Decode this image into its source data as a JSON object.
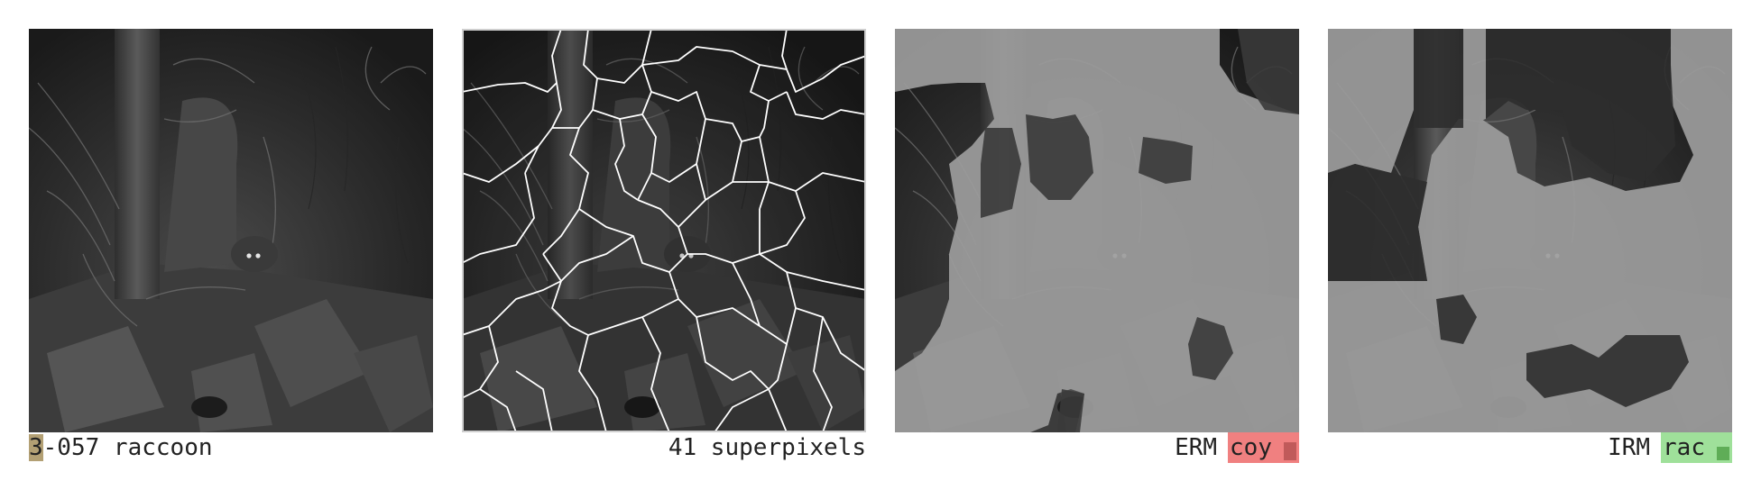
{
  "panels": [
    {
      "name": "original",
      "id_prefix": "3",
      "label": "-057 raccoon"
    },
    {
      "name": "superpixels",
      "label": "41 superpixels"
    },
    {
      "name": "erm",
      "method": "ERM",
      "prediction": "coy",
      "correct": false,
      "confidence": 0.7
    },
    {
      "name": "irm",
      "method": "IRM",
      "prediction": "rac",
      "correct": true,
      "confidence": 0.55
    }
  ],
  "colors": {
    "id_chip": "#b3a074",
    "wrong": "#f08080",
    "wrong_bar": "#c05a5a",
    "correct": "#9fe09a",
    "correct_bar": "#5fad57",
    "text": "#222222",
    "mask_gray": "#9c9c9c"
  }
}
